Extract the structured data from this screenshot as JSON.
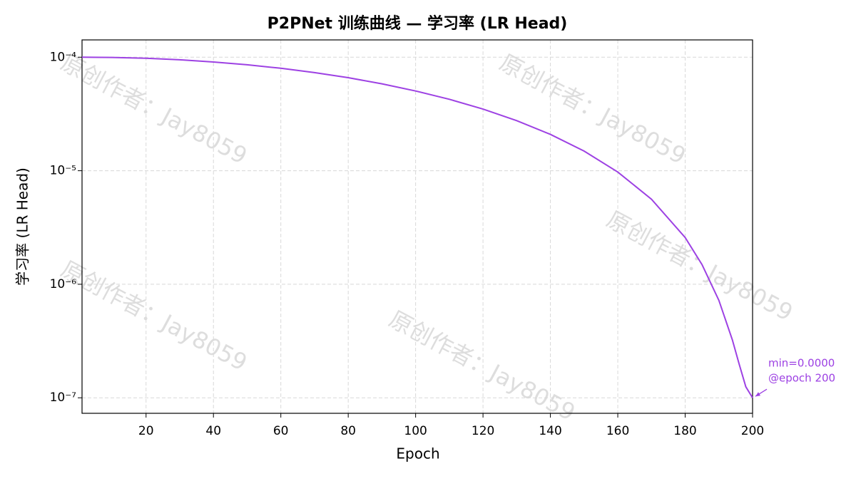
{
  "chart_data": {
    "type": "line",
    "title": "P2PNet 训练曲线 — 学习率 (LR Head)",
    "xlabel": "Epoch",
    "ylabel": "学习率 (LR Head)",
    "x": [
      1,
      10,
      20,
      30,
      40,
      50,
      60,
      70,
      80,
      90,
      100,
      110,
      120,
      130,
      140,
      150,
      160,
      170,
      180,
      185,
      190,
      194,
      196,
      198,
      200
    ],
    "values": [
      0.0001,
      9.95e-05,
      9.78e-05,
      9.49e-05,
      9.08e-05,
      8.58e-05,
      7.99e-05,
      7.32e-05,
      6.6e-05,
      5.83e-05,
      5.04e-05,
      4.26e-05,
      3.49e-05,
      2.76e-05,
      2.09e-05,
      1.49e-05,
      9.74e-06,
      5.61e-06,
      2.58e-06,
      1.49e-06,
      7.22e-07,
      3.24e-07,
      1.99e-07,
      1.25e-07,
      1e-07
    ],
    "color": "#9d41e3",
    "xlim": [
      1,
      200
    ],
    "xticks": [
      20,
      40,
      60,
      80,
      100,
      120,
      140,
      160,
      180,
      200
    ],
    "ylog": true,
    "ylim": [
      7.3e-08,
      0.000142
    ],
    "yticks": [
      {
        "value": 1e-07,
        "label": "10⁻⁷"
      },
      {
        "value": 1e-06,
        "label": "10⁻⁶"
      },
      {
        "value": 1e-05,
        "label": "10⁻⁵"
      },
      {
        "value": 0.0001,
        "label": "10⁻⁴"
      }
    ],
    "grid": true,
    "annotation": {
      "text": [
        "min=0.0000",
        "@epoch 200"
      ],
      "x": 200,
      "y": 1e-07
    },
    "watermark": "原创作者：Jay8059"
  }
}
